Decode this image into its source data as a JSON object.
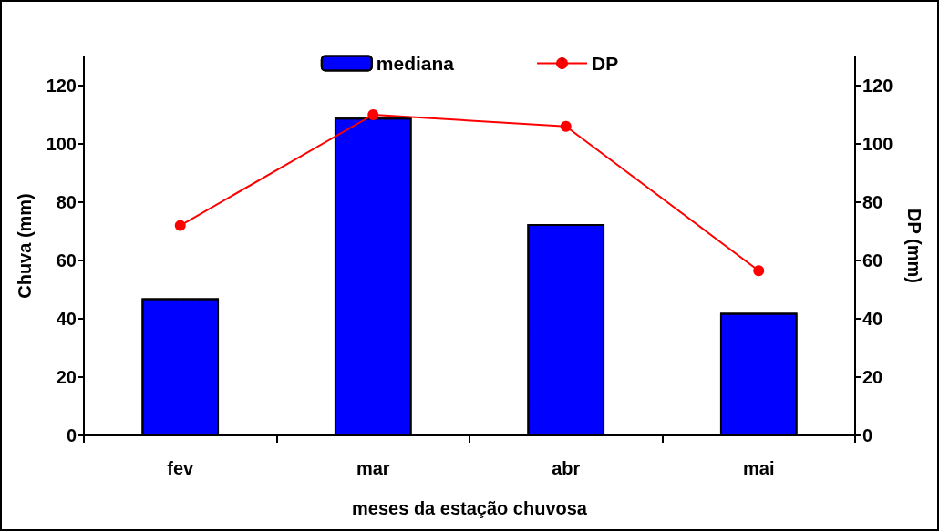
{
  "chart_data": {
    "type": "bar",
    "xlabel": "meses da estação chuvosa",
    "ylabel": "Chuva (mm)",
    "y2label": "DP (mm)",
    "categories": [
      "fev",
      "mar",
      "abr",
      "mai"
    ],
    "series": [
      {
        "name": "mediana",
        "color": "#0000ff",
        "values": [
          47,
          109,
          72.5,
          42
        ]
      },
      {
        "name": "DP",
        "type": "line",
        "axis": "y2",
        "color": "#ff0000",
        "values": [
          72,
          110,
          106,
          56.5
        ]
      }
    ],
    "ylim": [
      0,
      130
    ],
    "yticks": [
      0,
      20,
      40,
      60,
      80,
      100,
      120
    ],
    "y2lim": [
      0,
      130
    ],
    "y2ticks": [
      0,
      20,
      40,
      60,
      80,
      100,
      120
    ],
    "grid": false,
    "legend": "top",
    "marker": "circle",
    "line_style": "solid"
  }
}
